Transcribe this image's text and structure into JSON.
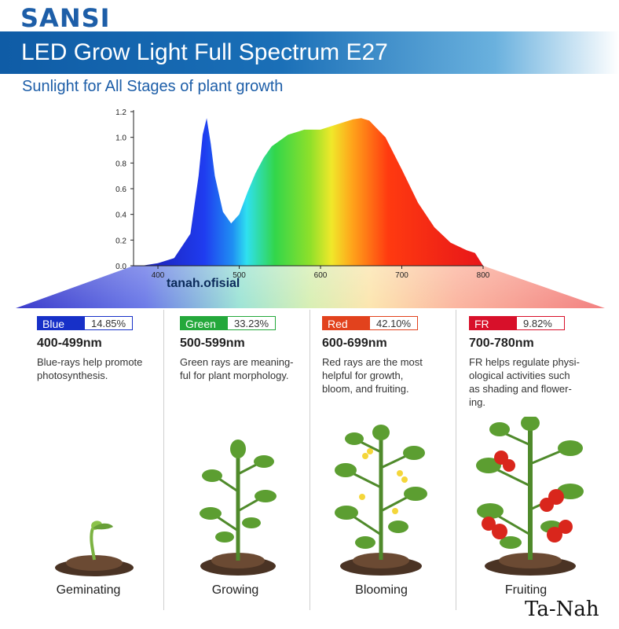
{
  "brand": {
    "logo": "SANSI"
  },
  "banner": {
    "title": "LED Grow Light Full Spectrum E27"
  },
  "subtitle": "Sunlight for All Stages of plant growth",
  "watermark_inline": "tanah.ofisial",
  "signature": "Ta-Nah",
  "chart_data": {
    "type": "area",
    "title": "",
    "xlabel": "",
    "ylabel": "",
    "xlim": [
      370,
      800
    ],
    "ylim": [
      0,
      1.2
    ],
    "x_ticks": [
      "400",
      "500",
      "600",
      "700",
      "800"
    ],
    "y_ticks": [
      "0.0",
      "0.2",
      "0.4",
      "0.6",
      "0.8",
      "1.0",
      "1.2"
    ],
    "series": [
      {
        "x": [
          380,
          400,
          420,
          440,
          450,
          455,
          460,
          465,
          470,
          480,
          490,
          500,
          510,
          520,
          530,
          540,
          560,
          580,
          600,
          620,
          640,
          650,
          660,
          680,
          700,
          720,
          740,
          760,
          780,
          790,
          800
        ],
        "y": [
          0.0,
          0.02,
          0.06,
          0.25,
          0.7,
          1.02,
          1.15,
          0.95,
          0.7,
          0.42,
          0.33,
          0.4,
          0.57,
          0.72,
          0.84,
          0.93,
          1.02,
          1.06,
          1.06,
          1.1,
          1.14,
          1.15,
          1.13,
          1.0,
          0.75,
          0.49,
          0.3,
          0.18,
          0.12,
          0.1,
          0.0
        ]
      }
    ]
  },
  "columns": [
    {
      "name": "Blue",
      "percent": "14.85%",
      "range": "400-499nm",
      "desc": [
        "Blue-rays help promote",
        "photosynthesis."
      ],
      "color": "#1730c8",
      "stage": "Geminating"
    },
    {
      "name": "Green",
      "percent": "33.23%",
      "range": "500-599nm",
      "desc": [
        "Green rays are meaning-",
        "ful for plant morphology."
      ],
      "color": "#24a83b",
      "stage": "Growing"
    },
    {
      "name": "Red",
      "percent": "42.10%",
      "range": "600-699nm",
      "desc": [
        "Red rays are the most",
        "helpful for growth,",
        "bloom, and fruiting."
      ],
      "color": "#e2421d",
      "stage": "Blooming"
    },
    {
      "name": "FR",
      "percent": "9.82%",
      "range": "700-780nm",
      "desc": [
        "FR helps regulate physi-",
        "ological activities such",
        "as shading and flower-",
        "ing."
      ],
      "color": "#d8102a",
      "stage": "Fruiting"
    }
  ]
}
